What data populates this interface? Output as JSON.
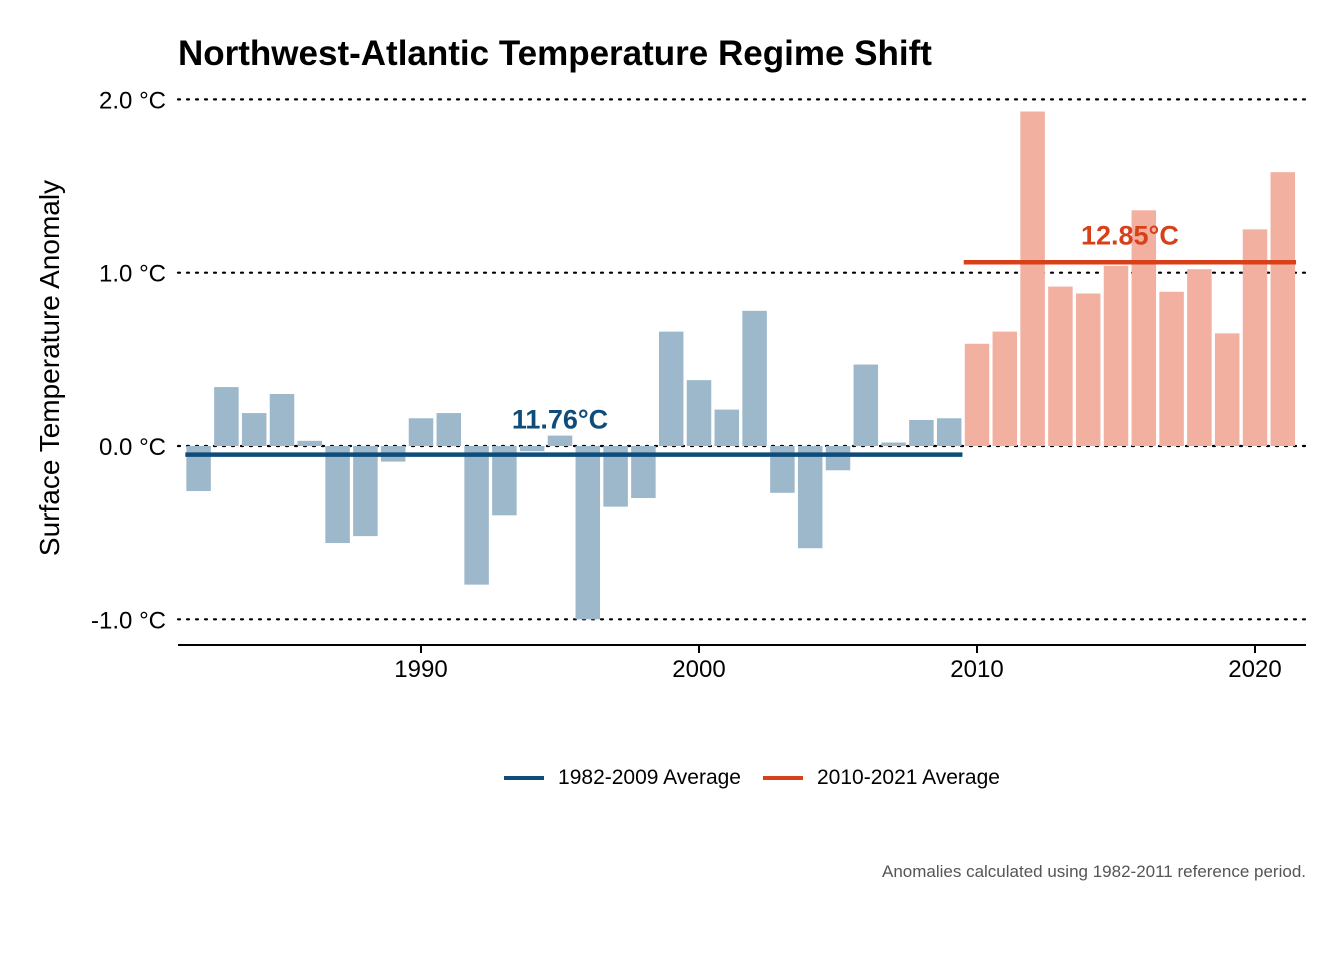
{
  "chart_data": {
    "type": "bar",
    "title": "Northwest-Atlantic Temperature Regime Shift",
    "ylabel": "Surface Temperature Anomaly",
    "xlabel": "",
    "ylim": [
      -1.0,
      2.0
    ],
    "y_ticks": [
      "2.0 °C",
      "1.0 °C",
      "0.0 °C",
      "-1.0 °C"
    ],
    "y_tick_values": [
      2.0,
      1.0,
      0.0,
      -1.0
    ],
    "x_ticks": [
      "1990",
      "2000",
      "2010",
      "2020"
    ],
    "x_tick_values": [
      1990,
      2000,
      2010,
      2020
    ],
    "grid": "horizontal dotted",
    "x": [
      1982,
      1983,
      1984,
      1985,
      1986,
      1987,
      1988,
      1989,
      1990,
      1991,
      1992,
      1993,
      1994,
      1995,
      1996,
      1997,
      1998,
      1999,
      2000,
      2001,
      2002,
      2003,
      2004,
      2005,
      2006,
      2007,
      2008,
      2009,
      2010,
      2011,
      2012,
      2013,
      2014,
      2015,
      2016,
      2017,
      2018,
      2019,
      2020,
      2021
    ],
    "values": [
      -0.26,
      0.34,
      0.19,
      0.3,
      0.03,
      -0.56,
      -0.52,
      -0.09,
      0.16,
      0.19,
      -0.8,
      -0.4,
      -0.03,
      0.06,
      -1.0,
      -0.35,
      -0.3,
      0.66,
      0.38,
      0.21,
      0.78,
      -0.27,
      -0.59,
      -0.14,
      0.47,
      0.02,
      0.15,
      0.16,
      0.59,
      0.66,
      1.93,
      0.92,
      0.88,
      1.04,
      1.36,
      0.89,
      1.02,
      0.65,
      1.25,
      1.58
    ],
    "period_colors": {
      "1982-2009": "#9db8ca",
      "2010-2021": "#f2b0a1"
    },
    "averages": [
      {
        "name": "1982-2009 Average",
        "start": 1982,
        "end": 2009,
        "value": -0.05,
        "label": "11.76°C",
        "label_x": 1995,
        "label_y": 0.16,
        "color": "#0f4c7a"
      },
      {
        "name": "2010-2021 Average",
        "start": 2010,
        "end": 2021,
        "value": 1.06,
        "label": "12.85°C",
        "label_x": 2015.5,
        "label_y": 1.22,
        "color": "#d8401a"
      }
    ],
    "legend_position": "bottom",
    "caption": "Anomalies calculated using 1982-2011 reference period."
  }
}
